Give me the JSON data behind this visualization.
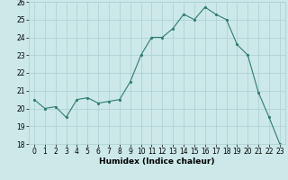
{
  "x": [
    0,
    1,
    2,
    3,
    4,
    5,
    6,
    7,
    8,
    9,
    10,
    11,
    12,
    13,
    14,
    15,
    16,
    17,
    18,
    19,
    20,
    21,
    22,
    23
  ],
  "y": [
    20.5,
    20.0,
    20.1,
    19.5,
    20.5,
    20.6,
    20.3,
    20.4,
    20.5,
    21.5,
    23.0,
    24.0,
    24.0,
    24.5,
    25.3,
    25.0,
    25.7,
    25.3,
    25.0,
    23.6,
    23.0,
    20.9,
    19.5,
    18.0
  ],
  "line_color": "#2e7d6e",
  "bg_color": "#cce8e8",
  "grid_color": "#aacfcf",
  "xlabel": "Humidex (Indice chaleur)",
  "ylim": [
    18,
    26
  ],
  "xlim_min": -0.5,
  "xlim_max": 23.5,
  "yticks": [
    18,
    19,
    20,
    21,
    22,
    23,
    24,
    25,
    26
  ],
  "xticks": [
    0,
    1,
    2,
    3,
    4,
    5,
    6,
    7,
    8,
    9,
    10,
    11,
    12,
    13,
    14,
    15,
    16,
    17,
    18,
    19,
    20,
    21,
    22,
    23
  ],
  "tick_fontsize": 5.5,
  "label_fontsize": 6.5
}
